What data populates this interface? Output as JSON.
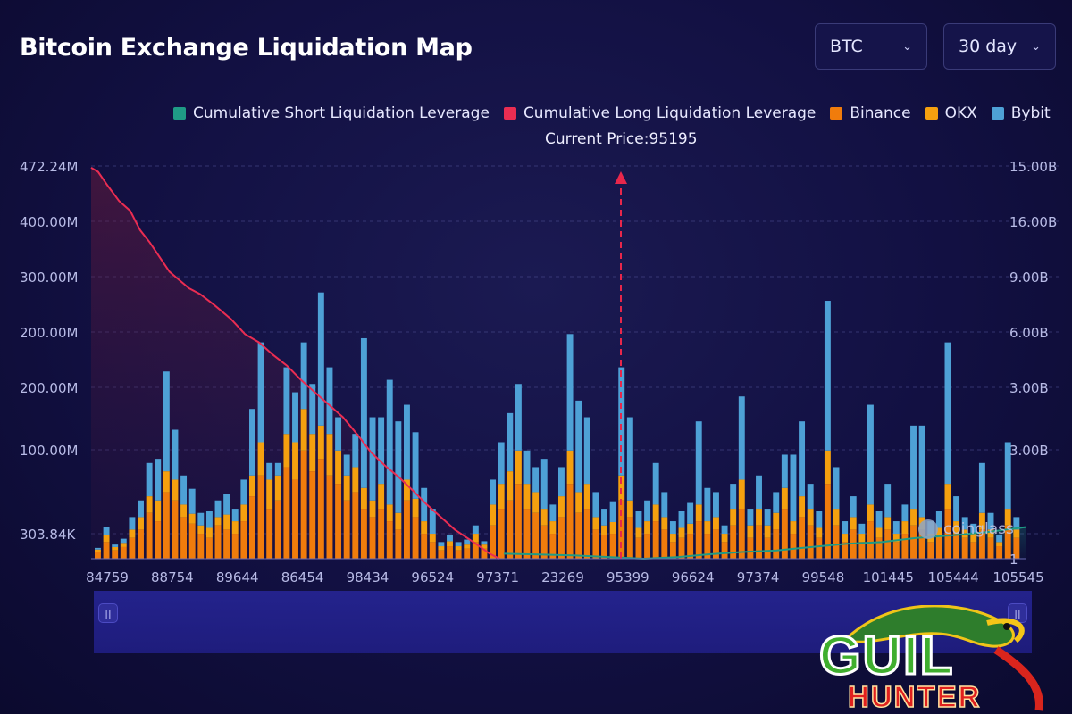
{
  "header": {
    "title": "Bitcoin Exchange Liquidation Map",
    "asset_select": "BTC",
    "range_select": "30 day"
  },
  "legend": {
    "items": [
      {
        "label": "Cumulative Short Liquidation Leverage",
        "color": "#1f9b86"
      },
      {
        "label": "Cumulative Long Liquidation Leverage",
        "color": "#ea2d52"
      },
      {
        "label": "Binance",
        "color": "#f07c0c"
      },
      {
        "label": "OKX",
        "color": "#f5a00f"
      },
      {
        "label": "Bybit",
        "color": "#4ea1d6"
      }
    ]
  },
  "current_price_label": "Current Price:95195",
  "watermark": "coinglass",
  "logo": {
    "line1": "GUIL",
    "line2": "HUNTER"
  },
  "chart_data": {
    "type": "bar",
    "x_tick_labels": [
      "84759",
      "88754",
      "89644",
      "86454",
      "98434",
      "96524",
      "97371",
      "23269",
      "95399",
      "96624",
      "97374",
      "99548",
      "101445",
      "105444",
      "105545"
    ],
    "y_left_tick_labels": [
      "472.24M",
      "400.00M",
      "300.00M",
      "200.00M",
      "200.00M",
      "100.00M",
      "303.84K"
    ],
    "y_right_tick_labels": [
      "15.00B",
      "16.00B",
      "9.00B",
      "6.00B",
      "3.00B",
      "3.00B",
      "1"
    ],
    "current_price": 95195,
    "colors": {
      "binance": "#f07c0c",
      "okx": "#f5a00f",
      "bybit": "#4ea1d6",
      "long": "#ea2d52",
      "short": "#1f9b86",
      "price_marker": "#e8274b"
    },
    "bars": [
      {
        "b": 8,
        "o": 3,
        "y": 2
      },
      {
        "b": 20,
        "o": 8,
        "y": 10
      },
      {
        "b": 10,
        "o": 4,
        "y": 3
      },
      {
        "b": 14,
        "o": 5,
        "y": 5
      },
      {
        "b": 25,
        "o": 10,
        "y": 15
      },
      {
        "b": 35,
        "o": 15,
        "y": 20
      },
      {
        "b": 55,
        "o": 20,
        "y": 40
      },
      {
        "b": 45,
        "o": 25,
        "y": 50
      },
      {
        "b": 80,
        "o": 25,
        "y": 120
      },
      {
        "b": 70,
        "o": 25,
        "y": 60
      },
      {
        "b": 50,
        "o": 15,
        "y": 35
      },
      {
        "b": 42,
        "o": 12,
        "y": 30
      },
      {
        "b": 30,
        "o": 10,
        "y": 15
      },
      {
        "b": 25,
        "o": 12,
        "y": 20
      },
      {
        "b": 40,
        "o": 10,
        "y": 20
      },
      {
        "b": 35,
        "o": 18,
        "y": 25
      },
      {
        "b": 30,
        "o": 15,
        "y": 15
      },
      {
        "b": 45,
        "o": 20,
        "y": 30
      },
      {
        "b": 75,
        "o": 25,
        "y": 80
      },
      {
        "b": 100,
        "o": 40,
        "y": 120
      },
      {
        "b": 60,
        "o": 35,
        "y": 20
      },
      {
        "b": 70,
        "o": 30,
        "y": 15
      },
      {
        "b": 110,
        "o": 40,
        "y": 80
      },
      {
        "b": 95,
        "o": 45,
        "y": 60
      },
      {
        "b": 130,
        "o": 50,
        "y": 80
      },
      {
        "b": 105,
        "o": 45,
        "y": 60
      },
      {
        "b": 120,
        "o": 40,
        "y": 160
      },
      {
        "b": 100,
        "o": 50,
        "y": 80
      },
      {
        "b": 90,
        "o": 40,
        "y": 40
      },
      {
        "b": 70,
        "o": 30,
        "y": 25
      },
      {
        "b": 80,
        "o": 30,
        "y": 40
      },
      {
        "b": 60,
        "o": 25,
        "y": 180
      },
      {
        "b": 50,
        "o": 20,
        "y": 100
      },
      {
        "b": 60,
        "o": 30,
        "y": 80
      },
      {
        "b": 45,
        "o": 20,
        "y": 150
      },
      {
        "b": 35,
        "o": 20,
        "y": 110
      },
      {
        "b": 70,
        "o": 25,
        "y": 90
      },
      {
        "b": 50,
        "o": 22,
        "y": 80
      },
      {
        "b": 30,
        "o": 15,
        "y": 40
      },
      {
        "b": 20,
        "o": 10,
        "y": 30
      },
      {
        "b": 10,
        "o": 5,
        "y": 5
      },
      {
        "b": 15,
        "o": 6,
        "y": 8
      },
      {
        "b": 10,
        "o": 5,
        "y": 5
      },
      {
        "b": 12,
        "o": 5,
        "y": 6
      },
      {
        "b": 20,
        "o": 10,
        "y": 10
      },
      {
        "b": 12,
        "o": 5,
        "y": 4
      },
      {
        "b": 40,
        "o": 25,
        "y": 30
      },
      {
        "b": 60,
        "o": 30,
        "y": 50
      },
      {
        "b": 70,
        "o": 35,
        "y": 70
      },
      {
        "b": 90,
        "o": 40,
        "y": 80
      },
      {
        "b": 60,
        "o": 30,
        "y": 40
      },
      {
        "b": 55,
        "o": 25,
        "y": 30
      },
      {
        "b": 40,
        "o": 20,
        "y": 60
      },
      {
        "b": 30,
        "o": 15,
        "y": 20
      },
      {
        "b": 50,
        "o": 25,
        "y": 35
      },
      {
        "b": 90,
        "o": 40,
        "y": 140
      },
      {
        "b": 55,
        "o": 25,
        "y": 110
      },
      {
        "b": 60,
        "o": 30,
        "y": 80
      },
      {
        "b": 35,
        "o": 15,
        "y": 30
      },
      {
        "b": 28,
        "o": 12,
        "y": 20
      },
      {
        "b": 30,
        "o": 14,
        "y": 25
      },
      {
        "b": 70,
        "o": 30,
        "y": 130
      },
      {
        "b": 50,
        "o": 20,
        "y": 100
      },
      {
        "b": 25,
        "o": 12,
        "y": 20
      },
      {
        "b": 30,
        "o": 15,
        "y": 25
      },
      {
        "b": 45,
        "o": 20,
        "y": 50
      },
      {
        "b": 35,
        "o": 15,
        "y": 30
      },
      {
        "b": 20,
        "o": 10,
        "y": 15
      },
      {
        "b": 25,
        "o": 12,
        "y": 20
      },
      {
        "b": 30,
        "o": 12,
        "y": 25
      },
      {
        "b": 45,
        "o": 20,
        "y": 100
      },
      {
        "b": 30,
        "o": 15,
        "y": 40
      },
      {
        "b": 35,
        "o": 15,
        "y": 30
      },
      {
        "b": 20,
        "o": 10,
        "y": 10
      },
      {
        "b": 40,
        "o": 20,
        "y": 30
      },
      {
        "b": 60,
        "o": 35,
        "y": 100
      },
      {
        "b": 25,
        "o": 15,
        "y": 20
      },
      {
        "b": 40,
        "o": 20,
        "y": 40
      },
      {
        "b": 25,
        "o": 15,
        "y": 20
      },
      {
        "b": 35,
        "o": 20,
        "y": 25
      },
      {
        "b": 60,
        "o": 25,
        "y": 40
      },
      {
        "b": 30,
        "o": 15,
        "y": 80
      },
      {
        "b": 50,
        "o": 25,
        "y": 90
      },
      {
        "b": 40,
        "o": 20,
        "y": 30
      },
      {
        "b": 25,
        "o": 12,
        "y": 20
      },
      {
        "b": 90,
        "o": 40,
        "y": 180
      },
      {
        "b": 40,
        "o": 20,
        "y": 50
      },
      {
        "b": 20,
        "o": 10,
        "y": 15
      },
      {
        "b": 35,
        "o": 15,
        "y": 25
      },
      {
        "b": 20,
        "o": 10,
        "y": 12
      },
      {
        "b": 45,
        "o": 20,
        "y": 120
      },
      {
        "b": 25,
        "o": 12,
        "y": 20
      },
      {
        "b": 35,
        "o": 15,
        "y": 40
      },
      {
        "b": 20,
        "o": 10,
        "y": 15
      },
      {
        "b": 30,
        "o": 15,
        "y": 20
      },
      {
        "b": 40,
        "o": 20,
        "y": 100
      },
      {
        "b": 35,
        "o": 15,
        "y": 110
      },
      {
        "b": 20,
        "o": 10,
        "y": 15
      },
      {
        "b": 25,
        "o": 12,
        "y": 20
      },
      {
        "b": 60,
        "o": 30,
        "y": 170
      },
      {
        "b": 30,
        "o": 15,
        "y": 30
      },
      {
        "b": 25,
        "o": 10,
        "y": 15
      },
      {
        "b": 20,
        "o": 10,
        "y": 12
      },
      {
        "b": 35,
        "o": 20,
        "y": 60
      },
      {
        "b": 25,
        "o": 10,
        "y": 20
      },
      {
        "b": 15,
        "o": 5,
        "y": 8
      },
      {
        "b": 40,
        "o": 20,
        "y": 80
      },
      {
        "b": 25,
        "o": 10,
        "y": 15
      }
    ],
    "long_cumulative": [
      [
        0,
        470
      ],
      [
        5,
        465
      ],
      [
        12,
        448
      ],
      [
        20,
        430
      ],
      [
        28,
        418
      ],
      [
        35,
        395
      ],
      [
        42,
        380
      ],
      [
        50,
        360
      ],
      [
        56,
        345
      ],
      [
        63,
        335
      ],
      [
        70,
        325
      ],
      [
        78,
        318
      ],
      [
        88,
        305
      ],
      [
        100,
        288
      ],
      [
        110,
        270
      ],
      [
        120,
        260
      ],
      [
        130,
        245
      ],
      [
        140,
        232
      ],
      [
        150,
        215
      ],
      [
        160,
        200
      ],
      [
        170,
        185
      ],
      [
        180,
        170
      ],
      [
        190,
        150
      ],
      [
        200,
        128
      ],
      [
        210,
        112
      ],
      [
        220,
        98
      ],
      [
        230,
        82
      ],
      [
        240,
        65
      ],
      [
        250,
        50
      ],
      [
        260,
        35
      ],
      [
        275,
        18
      ],
      [
        285,
        6
      ],
      [
        292,
        0
      ]
    ],
    "short_cumulative": [
      [
        295,
        6
      ],
      [
        320,
        5
      ],
      [
        345,
        4
      ],
      [
        370,
        2
      ],
      [
        395,
        0
      ],
      [
        420,
        2
      ],
      [
        440,
        5
      ],
      [
        465,
        8
      ],
      [
        490,
        10
      ],
      [
        515,
        14
      ],
      [
        540,
        18
      ],
      [
        565,
        20
      ],
      [
        590,
        25
      ],
      [
        615,
        28
      ],
      [
        640,
        32
      ],
      [
        668,
        38
      ]
    ]
  }
}
